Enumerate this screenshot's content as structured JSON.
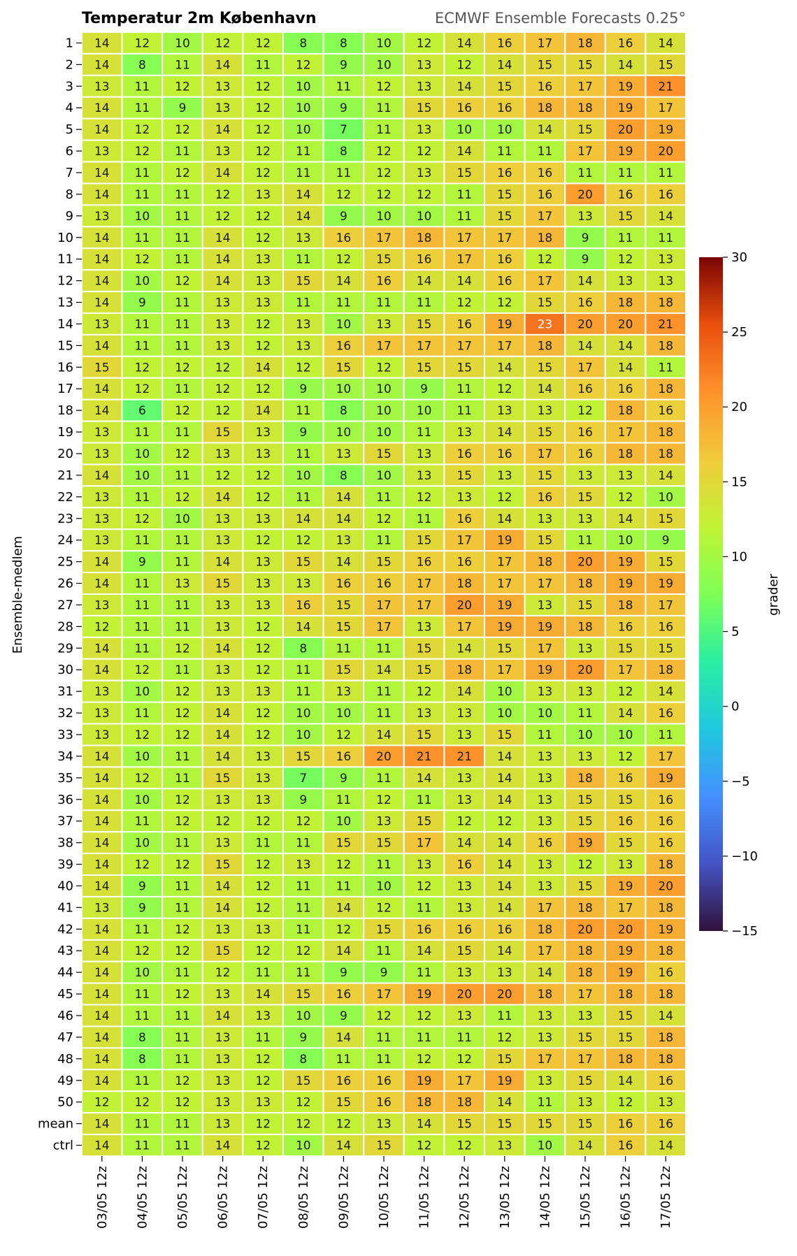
{
  "chart_data": {
    "type": "heatmap",
    "title": "Temperatur 2m København",
    "subtitle": "ECMWF Ensemble Forecasts 0.25°",
    "ylabel": "Ensemble-medlem",
    "xlabel": "",
    "colorbar": {
      "label": "grader",
      "range": [
        -15,
        30
      ],
      "ticks": [
        "30",
        "25",
        "20",
        "15",
        "10",
        "5",
        "0",
        "−5",
        "−10",
        "−15"
      ],
      "colormap": "turbo"
    },
    "columns": [
      "03/05 12z",
      "04/05 12z",
      "05/05 12z",
      "06/05 12z",
      "07/05 12z",
      "08/05 12z",
      "09/05 12z",
      "10/05 12z",
      "11/05 12z",
      "12/05 12z",
      "13/05 12z",
      "14/05 12z",
      "15/05 12z",
      "16/05 12z",
      "17/05 12z"
    ],
    "rows": [
      "1",
      "2",
      "3",
      "4",
      "5",
      "6",
      "7",
      "8",
      "9",
      "10",
      "11",
      "12",
      "13",
      "14",
      "15",
      "16",
      "17",
      "18",
      "19",
      "20",
      "21",
      "22",
      "23",
      "24",
      "25",
      "26",
      "27",
      "28",
      "29",
      "30",
      "31",
      "32",
      "33",
      "34",
      "35",
      "36",
      "37",
      "38",
      "39",
      "40",
      "41",
      "42",
      "43",
      "44",
      "45",
      "46",
      "47",
      "48",
      "49",
      "50",
      "mean",
      "ctrl"
    ],
    "values": [
      [
        14,
        12,
        10,
        12,
        12,
        8,
        8,
        10,
        12,
        14,
        16,
        17,
        18,
        16,
        14
      ],
      [
        14,
        8,
        11,
        14,
        11,
        12,
        9,
        10,
        13,
        12,
        14,
        15,
        15,
        14,
        15
      ],
      [
        13,
        11,
        12,
        13,
        12,
        10,
        11,
        12,
        13,
        14,
        15,
        16,
        17,
        19,
        21
      ],
      [
        14,
        11,
        9,
        13,
        12,
        10,
        9,
        11,
        15,
        16,
        16,
        18,
        18,
        19,
        17
      ],
      [
        14,
        12,
        12,
        14,
        12,
        10,
        7,
        11,
        13,
        10,
        10,
        14,
        15,
        20,
        19
      ],
      [
        13,
        12,
        11,
        13,
        12,
        11,
        8,
        12,
        12,
        14,
        11,
        11,
        17,
        19,
        20
      ],
      [
        14,
        11,
        12,
        14,
        12,
        11,
        11,
        12,
        13,
        15,
        16,
        16,
        11,
        11,
        11
      ],
      [
        14,
        11,
        11,
        12,
        13,
        14,
        12,
        12,
        12,
        11,
        15,
        16,
        20,
        16,
        16
      ],
      [
        13,
        10,
        11,
        12,
        12,
        14,
        9,
        10,
        10,
        11,
        15,
        17,
        13,
        15,
        14
      ],
      [
        14,
        11,
        11,
        14,
        12,
        13,
        16,
        17,
        18,
        17,
        17,
        18,
        9,
        11,
        11
      ],
      [
        14,
        12,
        11,
        14,
        13,
        11,
        12,
        15,
        16,
        17,
        16,
        12,
        9,
        12,
        13
      ],
      [
        14,
        10,
        12,
        14,
        13,
        15,
        14,
        16,
        14,
        14,
        16,
        17,
        14,
        13,
        13
      ],
      [
        14,
        9,
        11,
        13,
        13,
        11,
        11,
        11,
        11,
        12,
        12,
        15,
        16,
        18,
        18
      ],
      [
        13,
        11,
        11,
        13,
        12,
        13,
        10,
        13,
        15,
        16,
        19,
        23,
        20,
        20,
        21
      ],
      [
        14,
        11,
        11,
        13,
        12,
        13,
        16,
        17,
        17,
        17,
        17,
        18,
        14,
        14,
        18
      ],
      [
        15,
        12,
        12,
        12,
        14,
        12,
        15,
        12,
        15,
        15,
        14,
        15,
        17,
        14,
        11
      ],
      [
        14,
        12,
        11,
        12,
        12,
        9,
        10,
        10,
        9,
        11,
        12,
        14,
        16,
        16,
        18
      ],
      [
        14,
        6,
        12,
        12,
        14,
        11,
        8,
        10,
        10,
        11,
        13,
        13,
        12,
        18,
        16
      ],
      [
        13,
        11,
        11,
        15,
        13,
        9,
        10,
        10,
        11,
        13,
        14,
        15,
        16,
        17,
        18
      ],
      [
        13,
        10,
        12,
        13,
        13,
        11,
        13,
        15,
        13,
        16,
        16,
        17,
        16,
        18,
        18
      ],
      [
        14,
        10,
        11,
        12,
        12,
        10,
        8,
        10,
        13,
        15,
        13,
        15,
        13,
        13,
        14
      ],
      [
        13,
        11,
        12,
        14,
        12,
        11,
        14,
        11,
        12,
        13,
        12,
        16,
        15,
        12,
        10
      ],
      [
        13,
        12,
        10,
        13,
        13,
        14,
        14,
        12,
        11,
        16,
        14,
        13,
        13,
        14,
        15
      ],
      [
        13,
        11,
        11,
        13,
        12,
        12,
        13,
        11,
        15,
        17,
        19,
        15,
        11,
        10,
        9
      ],
      [
        14,
        9,
        11,
        14,
        13,
        15,
        14,
        15,
        16,
        16,
        17,
        18,
        20,
        19,
        15
      ],
      [
        14,
        11,
        13,
        15,
        13,
        13,
        16,
        16,
        17,
        18,
        17,
        17,
        18,
        19,
        19
      ],
      [
        13,
        11,
        11,
        13,
        13,
        16,
        15,
        17,
        17,
        20,
        19,
        13,
        15,
        18,
        17
      ],
      [
        12,
        11,
        11,
        13,
        12,
        14,
        15,
        17,
        13,
        17,
        19,
        19,
        18,
        16,
        16
      ],
      [
        14,
        11,
        12,
        14,
        12,
        8,
        11,
        11,
        15,
        14,
        15,
        17,
        13,
        15,
        15
      ],
      [
        14,
        12,
        11,
        13,
        12,
        11,
        15,
        14,
        15,
        18,
        17,
        19,
        20,
        17,
        18
      ],
      [
        13,
        10,
        12,
        13,
        13,
        11,
        13,
        11,
        12,
        14,
        10,
        13,
        13,
        12,
        14
      ],
      [
        13,
        11,
        12,
        14,
        12,
        10,
        10,
        11,
        13,
        13,
        10,
        10,
        11,
        14,
        16
      ],
      [
        13,
        12,
        12,
        14,
        12,
        10,
        12,
        14,
        15,
        13,
        15,
        11,
        10,
        10,
        11
      ],
      [
        14,
        10,
        11,
        14,
        13,
        15,
        16,
        20,
        21,
        21,
        14,
        13,
        13,
        12,
        17
      ],
      [
        14,
        12,
        11,
        15,
        13,
        7,
        9,
        11,
        14,
        13,
        14,
        13,
        18,
        16,
        19
      ],
      [
        14,
        10,
        12,
        13,
        13,
        9,
        11,
        12,
        11,
        13,
        14,
        13,
        15,
        15,
        16
      ],
      [
        14,
        11,
        12,
        12,
        12,
        12,
        10,
        13,
        15,
        12,
        12,
        13,
        15,
        16,
        16
      ],
      [
        14,
        10,
        11,
        13,
        11,
        11,
        15,
        15,
        17,
        14,
        14,
        16,
        19,
        15,
        16
      ],
      [
        14,
        12,
        12,
        15,
        12,
        13,
        12,
        11,
        13,
        16,
        14,
        13,
        12,
        13,
        18
      ],
      [
        14,
        9,
        11,
        14,
        12,
        11,
        11,
        10,
        12,
        13,
        14,
        13,
        15,
        19,
        20
      ],
      [
        13,
        9,
        11,
        14,
        12,
        11,
        14,
        12,
        11,
        13,
        14,
        17,
        18,
        17,
        18
      ],
      [
        14,
        11,
        12,
        13,
        13,
        11,
        12,
        15,
        16,
        16,
        16,
        18,
        20,
        20,
        19
      ],
      [
        14,
        12,
        12,
        15,
        12,
        12,
        14,
        11,
        14,
        15,
        14,
        17,
        18,
        19,
        18
      ],
      [
        14,
        10,
        11,
        12,
        11,
        11,
        9,
        9,
        11,
        13,
        13,
        14,
        18,
        19,
        16
      ],
      [
        14,
        11,
        12,
        13,
        14,
        15,
        16,
        17,
        19,
        20,
        20,
        18,
        17,
        18,
        18
      ],
      [
        14,
        11,
        11,
        14,
        13,
        10,
        9,
        12,
        12,
        13,
        11,
        13,
        13,
        15,
        14
      ],
      [
        14,
        8,
        11,
        13,
        11,
        9,
        14,
        11,
        11,
        11,
        12,
        13,
        15,
        15,
        18
      ],
      [
        14,
        8,
        11,
        13,
        12,
        8,
        11,
        11,
        12,
        12,
        15,
        17,
        17,
        18,
        18
      ],
      [
        14,
        11,
        12,
        13,
        12,
        15,
        16,
        16,
        19,
        17,
        19,
        13,
        15,
        14,
        16
      ],
      [
        12,
        12,
        12,
        13,
        13,
        12,
        15,
        16,
        18,
        18,
        14,
        11,
        13,
        12,
        13
      ],
      [
        14,
        11,
        11,
        13,
        12,
        12,
        12,
        13,
        14,
        15,
        15,
        15,
        15,
        16,
        16
      ],
      [
        14,
        11,
        11,
        14,
        12,
        10,
        14,
        15,
        12,
        12,
        13,
        10,
        14,
        16,
        14
      ]
    ]
  }
}
